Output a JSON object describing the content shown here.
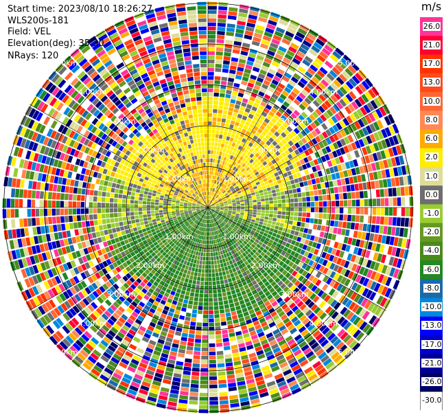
{
  "info": {
    "start_time": "Start time: 2023/08/10 18:26:27",
    "instrument": "WLS200s-181",
    "field": "Field: VEL",
    "elevation": "Elevation(deg): 35.30",
    "nrays": "NRays: 120"
  },
  "ring_labels": [
    "1.00km",
    "2.00km",
    "3.00km",
    "4.00km",
    "5.00km"
  ],
  "colorbar": {
    "unit": "m/s",
    "levels": [
      {
        "label": "26.0",
        "color": "#ff3399"
      },
      {
        "label": "21.0",
        "color": "#ff0033"
      },
      {
        "label": "17.0",
        "color": "#ff3300"
      },
      {
        "label": "13.0",
        "color": "#ff4a1a"
      },
      {
        "label": "10.0",
        "color": "#ff6633"
      },
      {
        "label": "8.0",
        "color": "#ff8855"
      },
      {
        "label": "6.0",
        "color": "#ffaa00"
      },
      {
        "label": "2.0",
        "color": "#ffee00"
      },
      {
        "label": "1.0",
        "color": "#dddd99"
      },
      {
        "label": "0.0",
        "color": "#6e6e6e"
      },
      {
        "label": "-1.0",
        "color": "#99cc33"
      },
      {
        "label": "-2.0",
        "color": "#669922"
      },
      {
        "label": "-4.0",
        "color": "#4a8a1a"
      },
      {
        "label": "-6.0",
        "color": "#228822"
      },
      {
        "label": "-8.0",
        "color": "#1a6aaa"
      },
      {
        "label": "-10.0",
        "color": "#0088dd"
      },
      {
        "label": "-13.0",
        "color": "#0000ff"
      },
      {
        "label": "-17.0",
        "color": "#0000cc"
      },
      {
        "label": "-21.0",
        "color": "#000099"
      },
      {
        "label": "-26.0",
        "color": "#000066"
      },
      {
        "label": "-30.0",
        "color": "#ffffff"
      }
    ]
  }
}
